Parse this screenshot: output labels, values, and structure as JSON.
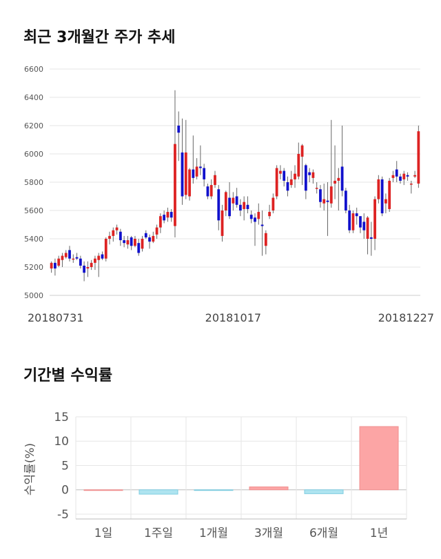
{
  "sections": {
    "price_title": "최근 3개월간 주가 추세",
    "returns_title": "기간별 수익률"
  },
  "colors": {
    "up": "#dd2222",
    "down": "#1111cc",
    "grid": "#e6e6e6",
    "positive_bar": "#fca5a5",
    "negative_bar": "#aee4f0"
  },
  "chart_data": [
    {
      "type": "candlestick",
      "title": "최근 3개월간 주가 추세",
      "ylim": [
        5000,
        6600
      ],
      "yticks": [
        5000,
        5200,
        5400,
        5600,
        5800,
        6000,
        6200,
        6400,
        6600
      ],
      "xtick_labels": [
        {
          "index": 0,
          "label": "20180731"
        },
        {
          "index": 50,
          "label": "20181017"
        },
        {
          "index": 101,
          "label": "20181227"
        }
      ],
      "grid": true,
      "candles": [
        [
          5190,
          5230,
          5160,
          5240
        ],
        [
          5230,
          5190,
          5140,
          5260
        ],
        [
          5210,
          5260,
          5200,
          5280
        ],
        [
          5250,
          5280,
          5200,
          5300
        ],
        [
          5270,
          5300,
          5260,
          5320
        ],
        [
          5320,
          5260,
          5240,
          5350
        ],
        [
          5260,
          5260,
          5230,
          5290
        ],
        [
          5270,
          5260,
          5250,
          5300
        ],
        [
          5260,
          5210,
          5190,
          5280
        ],
        [
          5210,
          5160,
          5100,
          5240
        ],
        [
          5190,
          5200,
          5130,
          5240
        ],
        [
          5200,
          5230,
          5180,
          5250
        ],
        [
          5230,
          5260,
          5180,
          5280
        ],
        [
          5250,
          5280,
          5130,
          5300
        ],
        [
          5290,
          5260,
          5250,
          5310
        ],
        [
          5260,
          5400,
          5240,
          5410
        ],
        [
          5400,
          5420,
          5360,
          5450
        ],
        [
          5420,
          5460,
          5380,
          5480
        ],
        [
          5460,
          5480,
          5430,
          5500
        ],
        [
          5450,
          5390,
          5350,
          5470
        ],
        [
          5390,
          5370,
          5340,
          5420
        ],
        [
          5360,
          5390,
          5330,
          5420
        ],
        [
          5410,
          5350,
          5320,
          5420
        ],
        [
          5350,
          5400,
          5340,
          5420
        ],
        [
          5370,
          5300,
          5280,
          5400
        ],
        [
          5330,
          5400,
          5310,
          5420
        ],
        [
          5440,
          5410,
          5400,
          5460
        ],
        [
          5410,
          5380,
          5330,
          5430
        ],
        [
          5380,
          5420,
          5370,
          5450
        ],
        [
          5430,
          5480,
          5400,
          5500
        ],
        [
          5480,
          5560,
          5440,
          5580
        ],
        [
          5570,
          5530,
          5510,
          5600
        ],
        [
          5550,
          5590,
          5520,
          5620
        ],
        [
          5590,
          5550,
          5520,
          5610
        ],
        [
          5490,
          6070,
          5410,
          6450
        ],
        [
          6200,
          6150,
          5950,
          6300
        ],
        [
          6010,
          5700,
          5640,
          6250
        ],
        [
          5710,
          6010,
          5680,
          6240
        ],
        [
          5700,
          5890,
          5670,
          5900
        ],
        [
          5890,
          5830,
          5790,
          6130
        ],
        [
          5840,
          5910,
          5820,
          5970
        ],
        [
          5910,
          5900,
          5850,
          6060
        ],
        [
          5900,
          5820,
          5770,
          5930
        ],
        [
          5770,
          5700,
          5680,
          5790
        ],
        [
          5700,
          5780,
          5680,
          5820
        ],
        [
          5780,
          5850,
          5760,
          5880
        ],
        [
          5750,
          5530,
          5460,
          5780
        ],
        [
          5420,
          5600,
          5380,
          5640
        ],
        [
          5600,
          5730,
          5560,
          5740
        ],
        [
          5690,
          5560,
          5540,
          5800
        ],
        [
          5650,
          5690,
          5600,
          5730
        ],
        [
          5700,
          5640,
          5620,
          5760
        ],
        [
          5640,
          5600,
          5560,
          5680
        ],
        [
          5610,
          5660,
          5530,
          5700
        ],
        [
          5640,
          5610,
          5580,
          5700
        ],
        [
          5570,
          5540,
          5510,
          5600
        ],
        [
          5550,
          5520,
          5350,
          5580
        ],
        [
          5540,
          5590,
          5500,
          5650
        ],
        [
          5500,
          5490,
          5280,
          5600
        ],
        [
          5350,
          5440,
          5290,
          5460
        ],
        [
          5560,
          5590,
          5540,
          5640
        ],
        [
          5600,
          5690,
          5580,
          5720
        ],
        [
          5700,
          5900,
          5680,
          5920
        ],
        [
          5860,
          5880,
          5820,
          5920
        ],
        [
          5880,
          5810,
          5770,
          5900
        ],
        [
          5800,
          5740,
          5700,
          5840
        ],
        [
          5780,
          5820,
          5760,
          5880
        ],
        [
          5820,
          5860,
          5760,
          5920
        ],
        [
          5840,
          6000,
          5820,
          6080
        ],
        [
          5980,
          6060,
          5780,
          6070
        ],
        [
          5920,
          5740,
          5680,
          5930
        ],
        [
          5870,
          5850,
          5800,
          5900
        ],
        [
          5830,
          5870,
          5790,
          5890
        ],
        [
          5760,
          5760,
          5720,
          5800
        ],
        [
          5750,
          5660,
          5620,
          5780
        ],
        [
          5650,
          5680,
          5600,
          5790
        ],
        [
          5670,
          5660,
          5420,
          5800
        ],
        [
          5650,
          5770,
          5620,
          6240
        ],
        [
          5790,
          5810,
          5680,
          6060
        ],
        [
          5810,
          5830,
          5600,
          5900
        ],
        [
          5910,
          5740,
          5700,
          6200
        ],
        [
          5740,
          5600,
          5580,
          5760
        ],
        [
          5600,
          5460,
          5440,
          5640
        ],
        [
          5460,
          5580,
          5440,
          5600
        ],
        [
          5580,
          5560,
          5500,
          5620
        ],
        [
          5560,
          5480,
          5440,
          5560
        ],
        [
          5520,
          5460,
          5400,
          5580
        ],
        [
          5400,
          5550,
          5290,
          5560
        ],
        [
          5410,
          5400,
          5280,
          5520
        ],
        [
          5400,
          5680,
          5320,
          5700
        ],
        [
          5680,
          5820,
          5650,
          5850
        ],
        [
          5820,
          5580,
          5560,
          5840
        ],
        [
          5650,
          5680,
          5580,
          5720
        ],
        [
          5610,
          5810,
          5590,
          5830
        ],
        [
          5830,
          5850,
          5800,
          5880
        ],
        [
          5890,
          5840,
          5800,
          5950
        ],
        [
          5840,
          5810,
          5790,
          5860
        ],
        [
          5820,
          5860,
          5780,
          5880
        ],
        [
          5850,
          5840,
          5810,
          5870
        ],
        [
          5790,
          5790,
          5720,
          5810
        ],
        [
          5840,
          5850,
          5830,
          5880
        ],
        [
          5790,
          6160,
          5760,
          6200
        ]
      ]
    },
    {
      "type": "bar",
      "title": "기간별 수익률",
      "categories": [
        "1일",
        "1주일",
        "1개월",
        "3개월",
        "6개월",
        "1년"
      ],
      "values": [
        0.0,
        -0.9,
        -0.1,
        0.6,
        -0.8,
        13.0
      ],
      "ylabel": "수익률(%)",
      "ylim": [
        -6,
        15
      ],
      "yticks": [
        -5,
        0,
        5,
        10,
        15
      ],
      "grid": true
    }
  ]
}
